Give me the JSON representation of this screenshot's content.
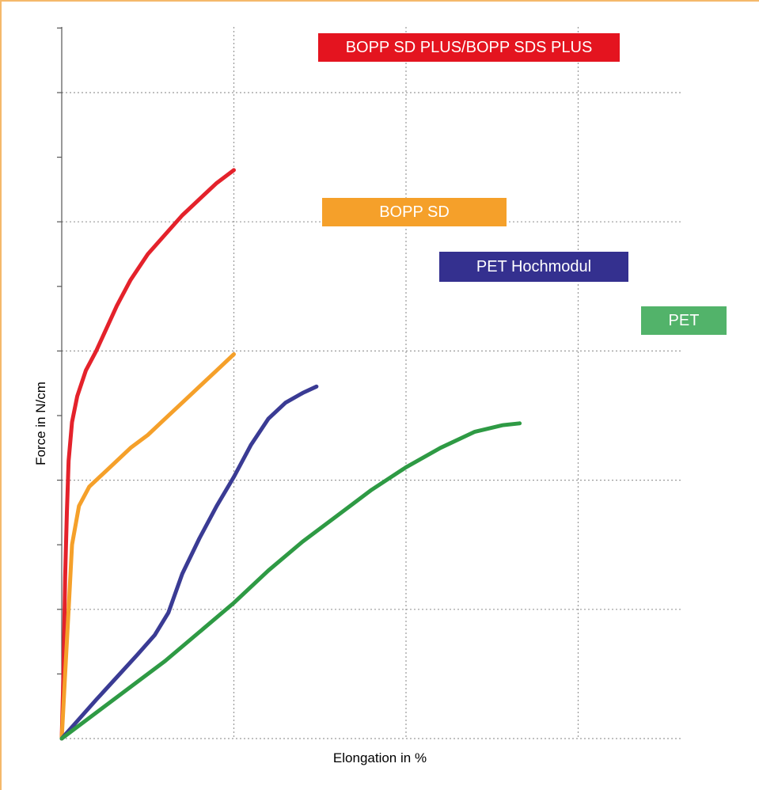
{
  "chart_data": {
    "type": "line",
    "title": "",
    "xlabel": "Elongation in %",
    "ylabel": "Force in N/cm",
    "grid": true,
    "legend": "labels at line ends",
    "series": [
      {
        "name": "BOPP SD PLUS/BOPP SDS PLUS",
        "color": "#e4222b",
        "points": [
          [
            0,
            0
          ],
          [
            0.05,
            1.0
          ],
          [
            0.1,
            2.5
          ],
          [
            0.15,
            3.5
          ],
          [
            0.2,
            4.3
          ],
          [
            0.3,
            4.9
          ],
          [
            0.45,
            5.3
          ],
          [
            0.7,
            5.7
          ],
          [
            1.0,
            6.0
          ],
          [
            1.3,
            6.35
          ],
          [
            1.6,
            6.7
          ],
          [
            2.0,
            7.1
          ],
          [
            2.5,
            7.5
          ],
          [
            3.0,
            7.8
          ],
          [
            3.5,
            8.1
          ],
          [
            4.0,
            8.35
          ],
          [
            4.5,
            8.6
          ],
          [
            5.0,
            8.8
          ]
        ]
      },
      {
        "name": "BOPP SD",
        "color": "#f5a02a",
        "points": [
          [
            0,
            0
          ],
          [
            0.1,
            1.0
          ],
          [
            0.2,
            2.0
          ],
          [
            0.3,
            3.0
          ],
          [
            0.5,
            3.6
          ],
          [
            0.8,
            3.9
          ],
          [
            1.3,
            4.15
          ],
          [
            2.0,
            4.5
          ],
          [
            2.5,
            4.7
          ],
          [
            3.0,
            4.95
          ],
          [
            3.5,
            5.2
          ],
          [
            4.0,
            5.45
          ],
          [
            4.5,
            5.7
          ],
          [
            5.0,
            5.95
          ]
        ]
      },
      {
        "name": "PET Hochmodul",
        "color": "#3a3b94",
        "points": [
          [
            0,
            0
          ],
          [
            0.5,
            0.3
          ],
          [
            1.0,
            0.6
          ],
          [
            1.6,
            0.95
          ],
          [
            2.2,
            1.3
          ],
          [
            2.7,
            1.6
          ],
          [
            3.1,
            1.95
          ],
          [
            3.5,
            2.55
          ],
          [
            4.0,
            3.1
          ],
          [
            4.5,
            3.6
          ],
          [
            5.0,
            4.05
          ],
          [
            5.5,
            4.55
          ],
          [
            6.0,
            4.95
          ],
          [
            6.5,
            5.2
          ],
          [
            7.0,
            5.35
          ],
          [
            7.4,
            5.45
          ]
        ]
      },
      {
        "name": "PET",
        "color": "#2e9a44",
        "points": [
          [
            0,
            0
          ],
          [
            1.0,
            0.4
          ],
          [
            2.0,
            0.8
          ],
          [
            3.0,
            1.2
          ],
          [
            4.0,
            1.65
          ],
          [
            5.0,
            2.1
          ],
          [
            6.0,
            2.6
          ],
          [
            7.0,
            3.05
          ],
          [
            8.0,
            3.45
          ],
          [
            9.0,
            3.85
          ],
          [
            10.0,
            4.2
          ],
          [
            11.0,
            4.5
          ],
          [
            12.0,
            4.75
          ],
          [
            12.8,
            4.85
          ],
          [
            13.3,
            4.88
          ]
        ]
      }
    ],
    "label_colors": [
      "#e4141f",
      "#f5a02a",
      "#34308f",
      "#52b36a"
    ]
  }
}
